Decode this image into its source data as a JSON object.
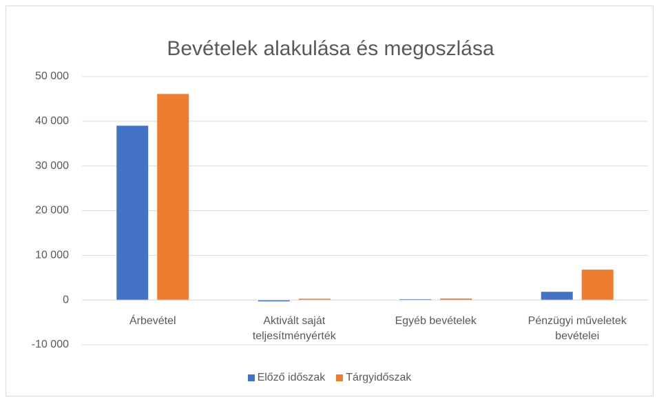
{
  "chart_data": {
    "type": "bar",
    "title": "Bevételek alakulása és megoszlása",
    "categories": [
      "Árbevétel",
      "Aktivált saját teljesítményérték",
      "Egyéb bevételek",
      "Pénzügyi műveletek bevételei"
    ],
    "series": [
      {
        "name": "Előző időszak",
        "color": "#4472c4",
        "values": [
          39000,
          -300,
          200,
          1850
        ]
      },
      {
        "name": "Tárgyidőszak",
        "color": "#ed7d31",
        "values": [
          46100,
          300,
          350,
          6800
        ]
      }
    ],
    "ylim": [
      -10000,
      50000
    ],
    "yticks": [
      {
        "value": -10000,
        "label": "-10 000"
      },
      0,
      {
        "value": 10000,
        "label": "10 000"
      },
      {
        "value": 20000,
        "label": "20 000"
      },
      {
        "value": 30000,
        "label": "30 000"
      },
      {
        "value": 40000,
        "label": "40 000"
      },
      {
        "value": 50000,
        "label": "50 000"
      }
    ],
    "grid": true,
    "legend": "bottom"
  }
}
